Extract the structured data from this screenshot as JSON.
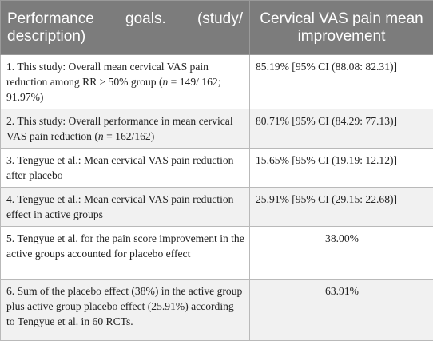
{
  "header": {
    "col1": "Performance goals. (study/ description)",
    "col2": "Cervical VAS pain mean improvement"
  },
  "rows": [
    {
      "desc_a": "1. This study: Overall mean cervical VAS pain reduction among RR ≥ 50% group (",
      "desc_n": "n",
      "desc_b": " = 149/ 162; 91.97%)",
      "value": "85.19% [95% CI (88.08: 82.31)]"
    },
    {
      "desc_a": "2. This study: Overall performance in mean cervical VAS pain reduction (",
      "desc_n": "n",
      "desc_b": " = 162/162)",
      "value": "80.71% [95% CI (84.29: 77.13)]"
    },
    {
      "desc": "3. Tengyue et al.: Mean cervical VAS pain reduction after placebo",
      "value": "15.65% [95% CI (19.19: 12.12)]"
    },
    {
      "desc": "4. Tengyue et al.: Mean cervical VAS pain reduction effect in active groups",
      "value": "25.91% [95% CI (29.15: 22.68)]"
    },
    {
      "desc": "5. Tengyue et al. for the pain score improvement in the active groups accounted for placebo effect",
      "value": "38.00%"
    },
    {
      "desc": "6. Sum of the placebo effect (38%) in the active group plus active group placebo effect (25.91%) according to Tengyue et al. in 60 RCTs.",
      "value": "63.91%"
    }
  ]
}
